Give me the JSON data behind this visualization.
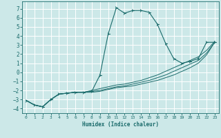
{
  "xlabel": "Humidex (Indice chaleur)",
  "bg_color": "#cce8e8",
  "grid_color": "#ffffff",
  "line_color": "#1a6b6b",
  "xlim": [
    -0.5,
    23.5
  ],
  "ylim": [
    -4.5,
    7.8
  ],
  "xticks": [
    0,
    1,
    2,
    3,
    4,
    5,
    6,
    7,
    8,
    9,
    10,
    11,
    12,
    13,
    14,
    15,
    16,
    17,
    18,
    19,
    20,
    21,
    22,
    23
  ],
  "yticks": [
    -4,
    -3,
    -2,
    -1,
    0,
    1,
    2,
    3,
    4,
    5,
    6,
    7
  ],
  "series": [
    {
      "x": [
        0,
        1,
        2,
        3,
        4,
        5,
        6,
        7,
        8,
        9,
        10,
        11,
        12,
        13,
        14,
        15,
        16,
        17,
        18,
        19,
        20,
        21,
        22,
        23
      ],
      "y": [
        -3.1,
        -3.6,
        -3.8,
        -3.0,
        -2.4,
        -2.3,
        -2.2,
        -2.2,
        -2.1,
        -0.3,
        4.2,
        7.1,
        6.5,
        6.8,
        6.8,
        6.6,
        5.3,
        3.2,
        1.5,
        1.0,
        1.2,
        1.5,
        3.3,
        3.3
      ],
      "has_markers": true
    },
    {
      "x": [
        0,
        1,
        2,
        3,
        4,
        5,
        6,
        7,
        8,
        9,
        10,
        11,
        12,
        13,
        14,
        15,
        16,
        17,
        18,
        19,
        20,
        21,
        22,
        23
      ],
      "y": [
        -3.1,
        -3.6,
        -3.8,
        -3.0,
        -2.4,
        -2.3,
        -2.2,
        -2.2,
        -2.2,
        -2.1,
        -1.9,
        -1.7,
        -1.6,
        -1.5,
        -1.3,
        -1.1,
        -0.9,
        -0.6,
        -0.3,
        0.1,
        0.5,
        1.0,
        1.9,
        3.3
      ],
      "has_markers": false
    },
    {
      "x": [
        0,
        1,
        2,
        3,
        4,
        5,
        6,
        7,
        8,
        9,
        10,
        11,
        12,
        13,
        14,
        15,
        16,
        17,
        18,
        19,
        20,
        21,
        22,
        23
      ],
      "y": [
        -3.1,
        -3.6,
        -3.8,
        -3.0,
        -2.4,
        -2.3,
        -2.2,
        -2.2,
        -2.1,
        -2.0,
        -1.8,
        -1.6,
        -1.5,
        -1.3,
        -1.1,
        -0.9,
        -0.6,
        -0.3,
        0.1,
        0.5,
        0.9,
        1.3,
        2.1,
        3.3
      ],
      "has_markers": false
    },
    {
      "x": [
        0,
        1,
        2,
        3,
        4,
        5,
        6,
        7,
        8,
        9,
        10,
        11,
        12,
        13,
        14,
        15,
        16,
        17,
        18,
        19,
        20,
        21,
        22,
        23
      ],
      "y": [
        -3.1,
        -3.6,
        -3.8,
        -3.0,
        -2.4,
        -2.3,
        -2.2,
        -2.2,
        -2.0,
        -1.8,
        -1.6,
        -1.4,
        -1.3,
        -1.1,
        -0.9,
        -0.6,
        -0.3,
        0.1,
        0.5,
        0.9,
        1.3,
        1.7,
        2.4,
        3.4
      ],
      "has_markers": false
    }
  ]
}
